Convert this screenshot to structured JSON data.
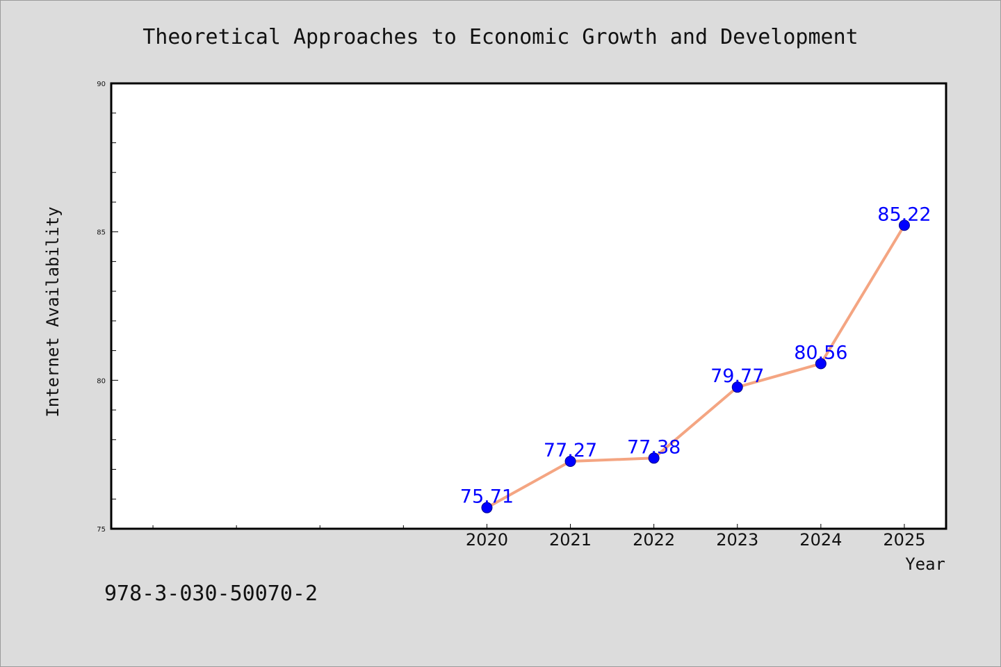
{
  "chart_data": {
    "type": "line",
    "title": "Theoretical Approaches to Economic Growth and Development",
    "xlabel": "Year",
    "ylabel": "Internet Availability",
    "x": [
      2020,
      2021,
      2022,
      2023,
      2024,
      2025
    ],
    "values": [
      75.71,
      77.27,
      77.38,
      79.77,
      80.56,
      85.22
    ],
    "data_labels": [
      "75.71",
      "77.27",
      "77.38",
      "79.77",
      "80.56",
      "85.22"
    ],
    "xlim": [
      2015.5,
      2025.5
    ],
    "ylim": [
      75,
      90
    ],
    "yticks": [
      75,
      80,
      85,
      90
    ],
    "ytick_labels": [
      "75",
      "80",
      "85",
      "90"
    ],
    "xticks": [
      2020,
      2021,
      2022,
      2023,
      2024,
      2025
    ],
    "xtick_labels": [
      "2020",
      "2021",
      "2022",
      "2023",
      "2024",
      "2025"
    ],
    "grid": false,
    "legend": "none",
    "line_color": "#f4a582",
    "marker_color": "#0000ff",
    "label_color": "#0000ff",
    "plot_background": "#ffffff",
    "figure_background": "#dcdcdc"
  },
  "footer": {
    "isbn": "978-3-030-50070-2"
  }
}
